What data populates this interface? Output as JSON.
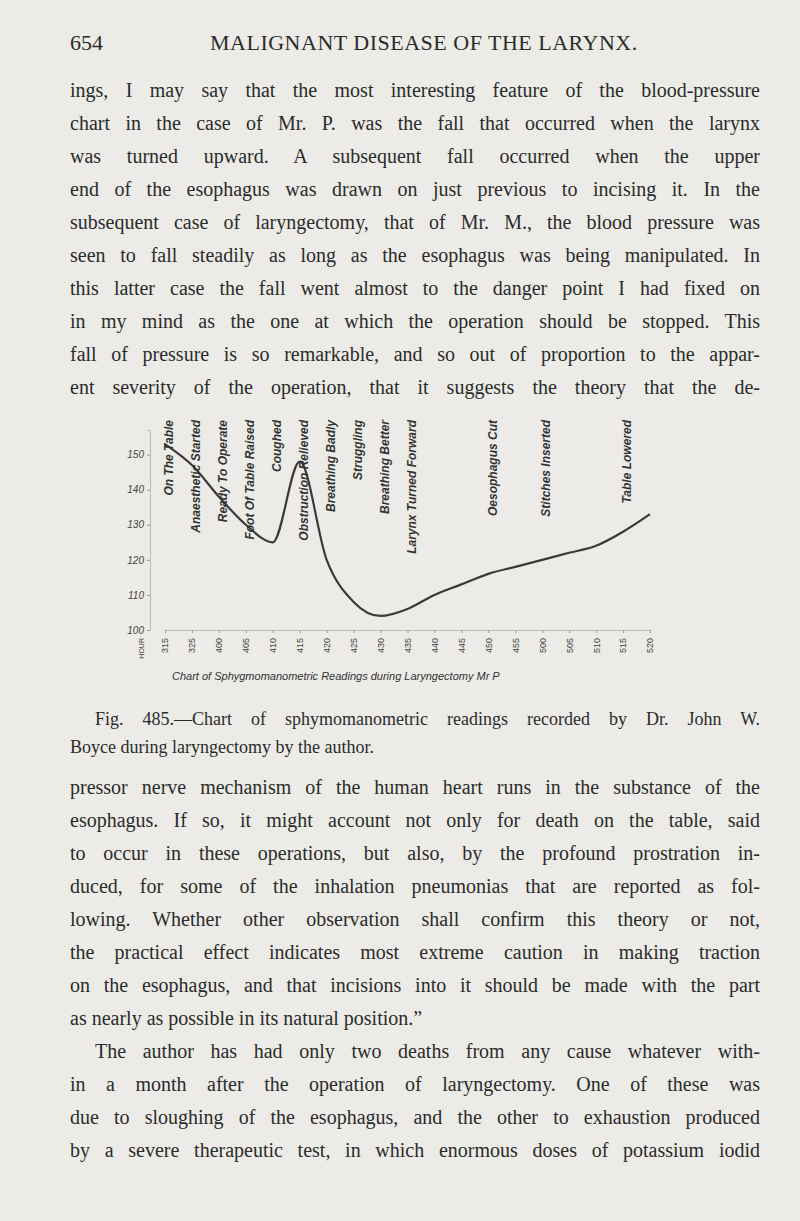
{
  "header": {
    "page_number": "654",
    "running_title": "MALIGNANT DISEASE OF THE LARYNX."
  },
  "body_before": [
    [
      "ings, I may say that the most interesting feature of the blood-pressure",
      "chart in the case of Mr. P. was the fall that occurred when the larynx",
      "was turned upward. A subsequent fall occurred when the upper",
      "end of the esophagus was drawn on just previous to incising it. In the",
      "subsequent case of laryngectomy, that of Mr. M., the blood pressure was",
      "seen to fall steadily as long as the esophagus was being manipulated. In",
      "this latter case the fall went almost to the danger point I had fixed on",
      "in my mind as the one at which the operation should be stopped. This",
      "fall of pressure is so remarkable, and so out of proportion to the appar-",
      "ent severity of the operation, that it suggests the theory that the de-"
    ]
  ],
  "chart_data": {
    "type": "line",
    "title": "Chart of Sphygmomanometric Readings during Laryngectomy Mr P",
    "x_label": "HOUR",
    "categories": [
      "315",
      "325",
      "400",
      "405",
      "410",
      "415",
      "420",
      "425",
      "430",
      "435",
      "440",
      "445",
      "450",
      "455",
      "500",
      "505",
      "510",
      "515",
      "520"
    ],
    "values": [
      153,
      147,
      138,
      130,
      125,
      148,
      120,
      108,
      104,
      106,
      110,
      113,
      116,
      118,
      120,
      122,
      124,
      128,
      133
    ],
    "color": "#3a3a3a",
    "ylim": [
      100,
      157
    ],
    "yticks": [
      100,
      110,
      120,
      130,
      140,
      150
    ],
    "annotations": [
      {
        "text": "On The Table",
        "x": "315"
      },
      {
        "text": "Anaesthetic Started",
        "x": "325"
      },
      {
        "text": "Ready To Operate",
        "x": "400"
      },
      {
        "text": "Foot Of Table Raised",
        "x": "405"
      },
      {
        "text": "Coughed",
        "x": "410"
      },
      {
        "text": "Obstruction Relieved",
        "x": "415"
      },
      {
        "text": "Breathing Badly",
        "x": "420"
      },
      {
        "text": "Struggling",
        "x": "425"
      },
      {
        "text": "Breathing Better",
        "x": "430"
      },
      {
        "text": "Larynx Turned Forward",
        "x": "435"
      },
      {
        "text": "Oesophagus Cut",
        "x": "450"
      },
      {
        "text": "Stitches Inserted",
        "x": "500"
      },
      {
        "text": "Table Lowered",
        "x": "515"
      }
    ]
  },
  "caption": [
    "Fig. 485.—Chart of sphymomanometric readings recorded by Dr. John W.",
    "Boyce during laryngectomy by the author."
  ],
  "body_after": [
    [
      "pressor nerve mechanism of the human heart runs in the substance of the",
      "esophagus. If so, it might account not only for death on the table, said",
      "to occur in these operations, but also, by the profound prostration in-",
      "duced, for some of the inhalation pneumonias that are reported as fol-",
      "lowing. Whether other observation shall confirm this theory or not,",
      "the practical effect indicates most extreme caution in making traction",
      "on the esophagus, and that incisions into it should be made with the part",
      "as nearly as possible in its natural position.”"
    ],
    [
      "The author has had only two deaths from any cause whatever with-",
      "in a month after the operation of laryngectomy. One of these was",
      "due to sloughing of the esophagus, and the other to exhaustion produced",
      "by a severe therapeutic test, in which enormous doses of potassium iodid"
    ]
  ]
}
